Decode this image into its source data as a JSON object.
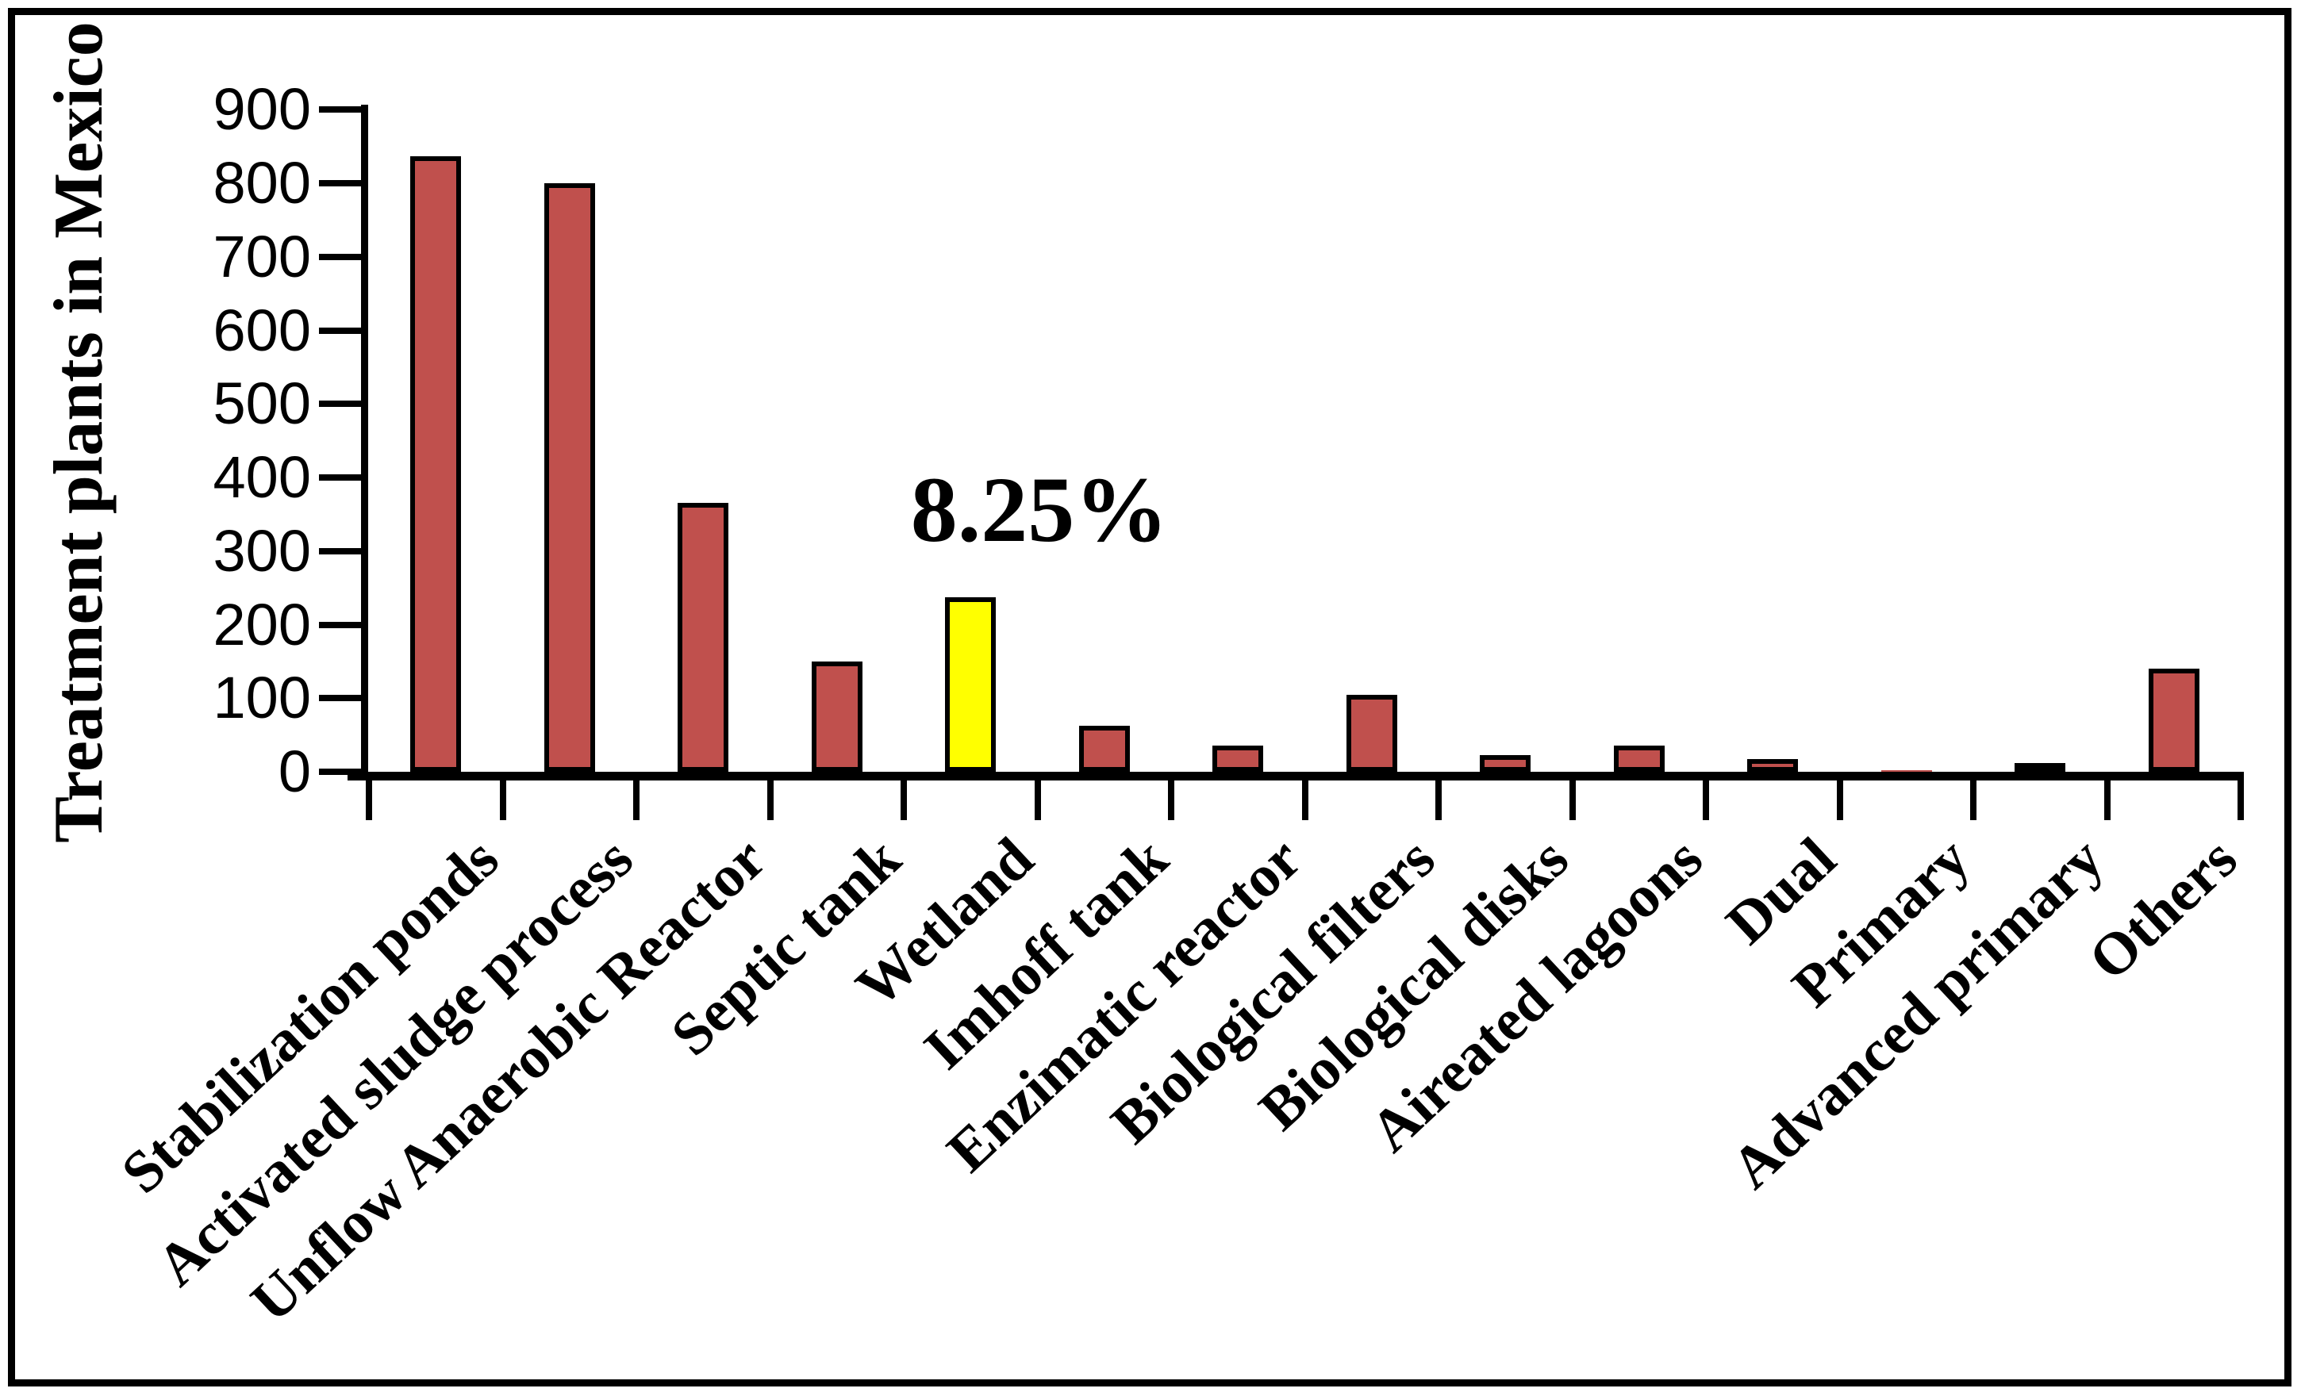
{
  "chart_data": {
    "type": "bar",
    "title": "",
    "xlabel": "",
    "ylabel": "Treatment plants in Mexico",
    "ylim": [
      0,
      900
    ],
    "ytick_interval": 100,
    "yticks": [
      900,
      800,
      700,
      600,
      500,
      400,
      300,
      200,
      100,
      0
    ],
    "grid": false,
    "legend": "none",
    "categories": [
      "Stabilization ponds",
      "Activated sludge process",
      "Unflow Anaerobic Reactor",
      "Septic tank",
      "Wetland",
      "Imhoff tank",
      "Enzimatic reactor",
      "Biological filters",
      "Biological disks",
      "Aireated lagoons",
      "Dual",
      "Primary",
      "Advanced primary",
      "Others"
    ],
    "values": [
      837,
      800,
      365,
      150,
      237,
      62,
      36,
      105,
      23,
      36,
      17,
      2,
      12,
      140
    ],
    "highlight_index": 4,
    "annotation": {
      "text": "8.25%",
      "target": "Wetland"
    },
    "colors": {
      "bar_default": "#C0504D",
      "bar_highlight": "#FFFF00",
      "bar_border": "#000000",
      "axis": "#000000",
      "background": "#FFFFFF"
    }
  }
}
